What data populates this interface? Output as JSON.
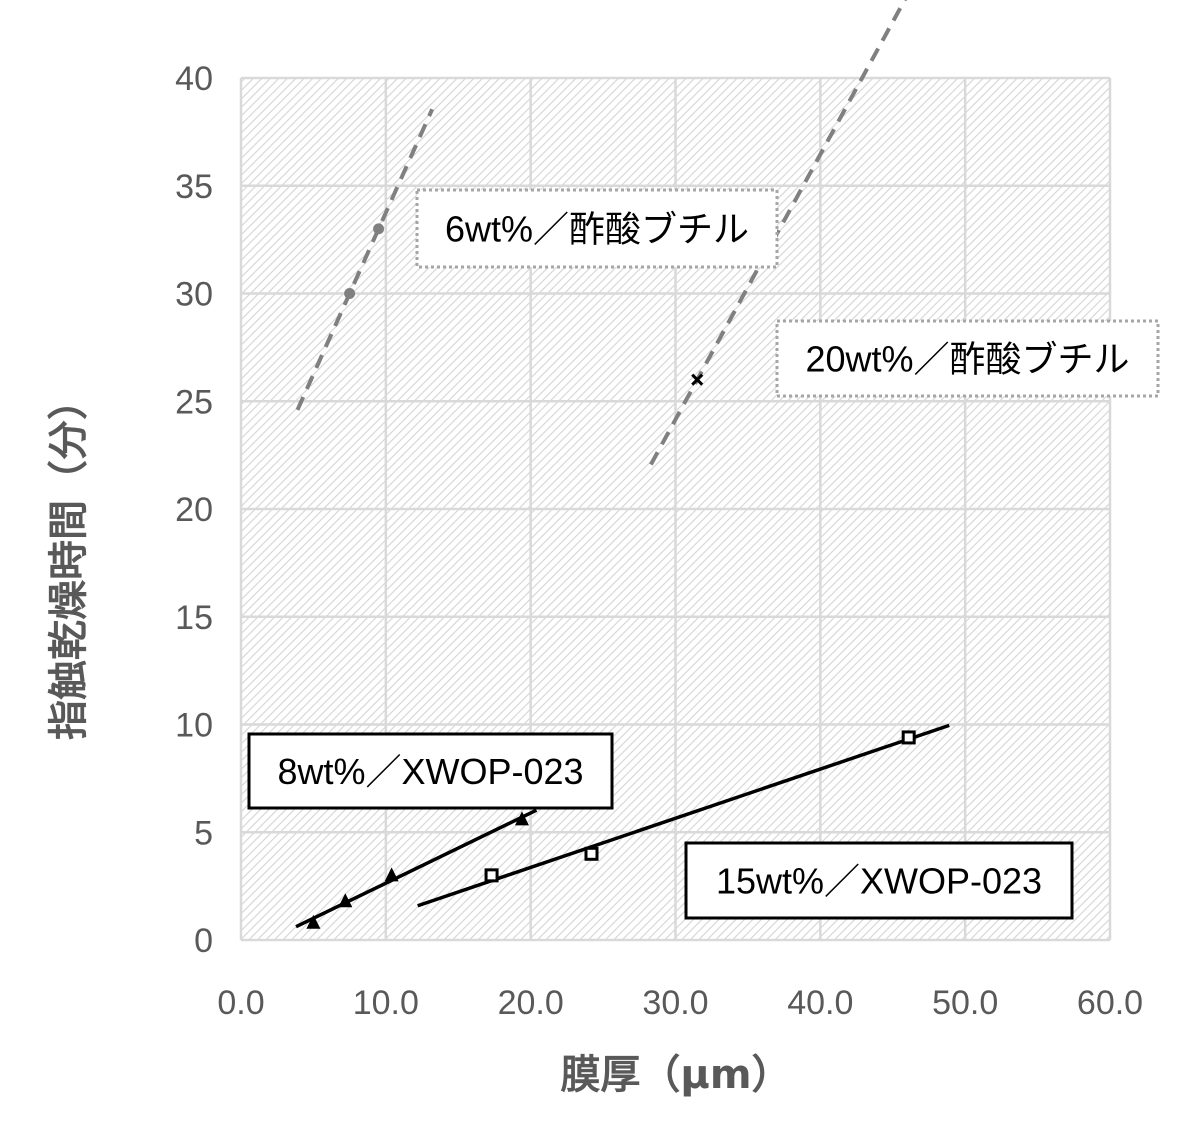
{
  "chart_data": {
    "type": "scatter",
    "xlabel": "膜厚（μm）",
    "ylabel": "指触乾燥時間（分）",
    "xlim": [
      0,
      60
    ],
    "ylim": [
      0,
      40
    ],
    "x_ticks": [
      "0.0",
      "10.0",
      "20.0",
      "30.0",
      "40.0",
      "50.0",
      "60.0"
    ],
    "y_ticks": [
      "0",
      "5",
      "10",
      "15",
      "20",
      "25",
      "30",
      "35",
      "40"
    ],
    "grid": true,
    "plot_background": "hatched light gray",
    "series": [
      {
        "name": "6wt%／酢酸ブチル",
        "marker": "circle",
        "color": "#808080",
        "trendline": "dashed",
        "points": [
          [
            7.5,
            30
          ],
          [
            9.5,
            33
          ]
        ],
        "trend_x": [
          3.9,
          13.2
        ],
        "label_box": "dotted"
      },
      {
        "name": "20wt%／酢酸ブチル",
        "marker": "x",
        "color": "#000000",
        "trendline_color": "#808080",
        "trendline": "dashed",
        "points": [
          [
            31.5,
            26
          ]
        ],
        "trend_x": [
          28.3,
          48.9
        ],
        "label_box": "dotted"
      },
      {
        "name": "8wt%／XWOP-023",
        "marker": "triangle",
        "color": "#000000",
        "trendline": "solid",
        "points": [
          [
            5.0,
            0.8
          ],
          [
            7.2,
            1.8
          ],
          [
            10.4,
            3.0
          ],
          [
            19.4,
            5.6
          ]
        ],
        "trend_x": [
          3.8,
          20.4
        ],
        "label_box": "solid"
      },
      {
        "name": "15wt%／XWOP-023",
        "marker": "square",
        "color": "#000000",
        "trendline": "solid",
        "points": [
          [
            17.3,
            3.0
          ],
          [
            24.2,
            4.0
          ],
          [
            46.1,
            9.4
          ]
        ],
        "trend_x": [
          12.2,
          48.9
        ],
        "label_box": "solid"
      }
    ]
  }
}
